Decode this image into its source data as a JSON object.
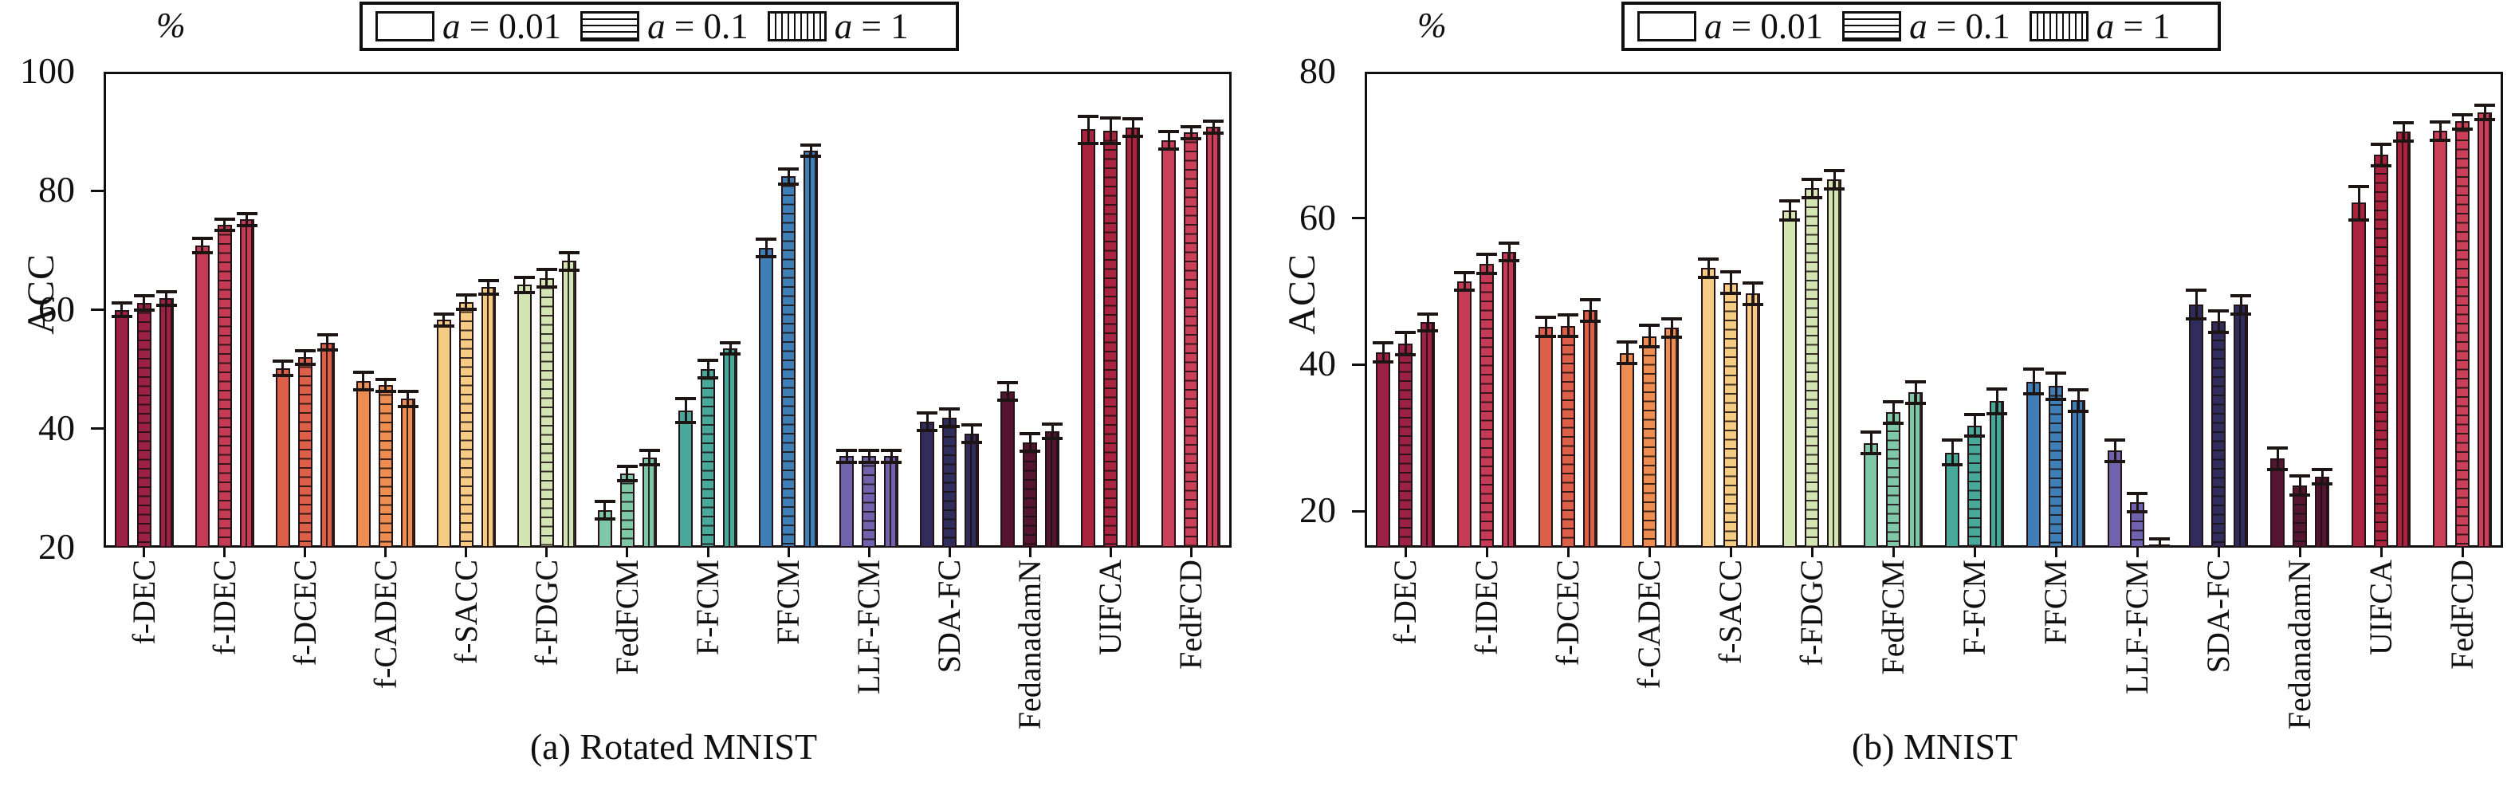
{
  "figure": {
    "y_axis_title": "ACC",
    "y_unit": "%",
    "captions": {
      "a": "(a) Rotated MNIST",
      "b": "(b) MNIST"
    }
  },
  "legend": {
    "position": "top-center",
    "items": [
      {
        "label": "a = 0.01",
        "pattern": "plain"
      },
      {
        "label": "a = 0.1",
        "pattern": "horizontal-stripes"
      },
      {
        "label": "a = 1",
        "pattern": "vertical-stripes"
      }
    ]
  },
  "chart_data": [
    {
      "id": "a",
      "type": "bar",
      "title": "(a) Rotated MNIST",
      "xlabel": "",
      "ylabel": "ACC",
      "y_unit": "%",
      "ylim": [
        20,
        100
      ],
      "yticks": [
        20,
        40,
        60,
        80,
        100
      ],
      "grid": false,
      "legend_position": "top-center",
      "categories": [
        "f-DEC",
        "f-IDEC",
        "f-DCEC",
        "f-CADEC",
        "f-SACC",
        "f-FDGC",
        "FedFCM",
        "F-FCM",
        "FFCM",
        "LLF-FCM",
        "SDA-FC",
        "FedanadamN",
        "UIFCA",
        "FedFCD"
      ],
      "bar_colors": [
        "#9B2245",
        "#C53A54",
        "#DC5F49",
        "#ED8D52",
        "#F6CC84",
        "#D2E5B3",
        "#7EC7A7",
        "#48A89A",
        "#3F7FB5",
        "#6F63AE",
        "#302C5C",
        "#551530",
        "#A8243F",
        "#C94058"
      ],
      "series": [
        {
          "name": "a = 0.01",
          "values": [
            60.0,
            70.8,
            50.2,
            48.0,
            58.3,
            64.2,
            26.3,
            43.1,
            70.4,
            35.4,
            41.2,
            46.3,
            90.3,
            88.5
          ],
          "errors": [
            1.2,
            1.2,
            1.2,
            1.5,
            1.0,
            1.3,
            1.5,
            2.0,
            1.5,
            1.0,
            1.5,
            1.5,
            2.3,
            1.5
          ]
        },
        {
          "name": "a = 0.1",
          "values": [
            61.2,
            74.3,
            52.0,
            47.3,
            61.3,
            65.3,
            32.5,
            50.0,
            82.4,
            35.4,
            41.9,
            37.7,
            90.1,
            89.8
          ],
          "errors": [
            1.2,
            1.0,
            1.2,
            1.0,
            1.2,
            1.5,
            1.2,
            1.5,
            1.3,
            1.0,
            1.5,
            1.5,
            2.2,
            1.0
          ]
        },
        {
          "name": "a = 1",
          "values": [
            61.9,
            75.2,
            54.5,
            45.0,
            63.8,
            68.2,
            35.2,
            53.5,
            86.8,
            35.4,
            39.2,
            39.6,
            90.6,
            90.7
          ],
          "errors": [
            1.2,
            1.0,
            1.3,
            1.3,
            1.2,
            1.5,
            1.2,
            1.0,
            1.0,
            1.0,
            1.5,
            1.2,
            1.5,
            1.0
          ]
        }
      ]
    },
    {
      "id": "b",
      "type": "bar",
      "title": "(b) MNIST",
      "xlabel": "",
      "ylabel": "ACC",
      "y_unit": "%",
      "ylim": [
        15,
        80
      ],
      "yticks": [
        20,
        40,
        60,
        80
      ],
      "grid": false,
      "legend_position": "top-center",
      "categories": [
        "f-DEC",
        "f-IDEC",
        "f-DCEC",
        "f-CADEC",
        "f-SACC",
        "f-FDGC",
        "FedFCM",
        "F-FCM",
        "FFCM",
        "LLF-FCM",
        "SDA-FC",
        "FedanadamN",
        "UIFCA",
        "FedFCD"
      ],
      "bar_colors": [
        "#9B2245",
        "#C53A54",
        "#DC5F49",
        "#ED8D52",
        "#F6CC84",
        "#D2E5B3",
        "#7EC7A7",
        "#48A89A",
        "#3F7FB5",
        "#6F63AE",
        "#302C5C",
        "#551530",
        "#A8243F",
        "#C94058"
      ],
      "series": [
        {
          "name": "a = 0.01",
          "values": [
            41.7,
            51.4,
            45.2,
            41.6,
            53.2,
            61.1,
            29.3,
            28.0,
            37.7,
            28.3,
            48.2,
            27.2,
            62.1,
            71.9
          ],
          "errors": [
            1.3,
            1.2,
            1.3,
            1.5,
            1.3,
            1.3,
            1.5,
            1.7,
            1.7,
            1.5,
            2.0,
            1.5,
            2.3,
            1.3
          ]
        },
        {
          "name": "a = 0.1",
          "values": [
            42.9,
            53.8,
            45.3,
            43.9,
            51.2,
            64.1,
            33.5,
            31.7,
            37.1,
            21.2,
            45.9,
            23.5,
            68.7,
            73.2
          ],
          "errors": [
            1.5,
            1.3,
            1.5,
            1.5,
            1.5,
            1.3,
            1.5,
            1.5,
            1.8,
            1.3,
            1.5,
            1.3,
            1.5,
            1.0
          ]
        },
        {
          "name": "a = 1",
          "values": [
            45.8,
            55.4,
            47.4,
            45.0,
            49.7,
            65.3,
            36.2,
            35.0,
            35.1,
            15.4,
            48.2,
            24.7,
            71.8,
            74.5
          ],
          "errors": [
            1.2,
            1.2,
            1.5,
            1.3,
            1.5,
            1.3,
            1.5,
            1.7,
            1.5,
            0.8,
            1.3,
            1.0,
            1.3,
            1.0
          ]
        }
      ]
    }
  ]
}
